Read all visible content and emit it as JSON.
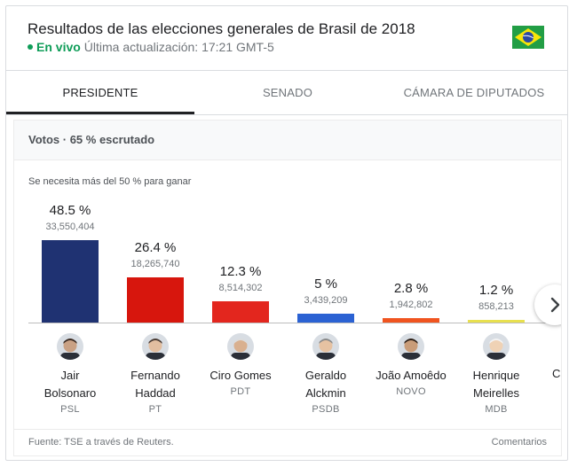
{
  "header": {
    "title": "Resultados de las elecciones generales de Brasil de 2018",
    "live_label": "En vivo",
    "update_text": "Última actualización: 17:21 GMT-5",
    "flag_icon": "brazil-flag-icon",
    "colors": {
      "live": "#0f9d58"
    }
  },
  "tabs": [
    {
      "label": "PRESIDENTE",
      "active": true
    },
    {
      "label": "SENADO",
      "active": false
    },
    {
      "label": "CÁMARA DE DIPUTADOS",
      "active": false
    }
  ],
  "panel": {
    "title": "Votos · 65 % escrutado",
    "threshold_note": "Se necesita más del 50 % para ganar"
  },
  "candidates": [
    {
      "name_line1": "Jair",
      "name_line2": "Bolsonaro",
      "party": "PSL",
      "percent_label": "48.5 %",
      "votes_label": "33,550,404",
      "percent": 48.5,
      "color": "#1f3272"
    },
    {
      "name_line1": "Fernando",
      "name_line2": "Haddad",
      "party": "PT",
      "percent_label": "26.4 %",
      "votes_label": "18,265,740",
      "percent": 26.4,
      "color": "#d7160d"
    },
    {
      "name_line1": "Ciro Gomes",
      "name_line2": "",
      "party": "PDT",
      "percent_label": "12.3 %",
      "votes_label": "8,514,302",
      "percent": 12.3,
      "color": "#e3261e"
    },
    {
      "name_line1": "Geraldo",
      "name_line2": "Alckmin",
      "party": "PSDB",
      "percent_label": "5 %",
      "votes_label": "3,439,209",
      "percent": 5,
      "color": "#2b62d3"
    },
    {
      "name_line1": "João Amoêdo",
      "name_line2": "",
      "party": "NOVO",
      "percent_label": "2.8 %",
      "votes_label": "1,942,802",
      "percent": 2.8,
      "color": "#f0541f"
    },
    {
      "name_line1": "Henrique",
      "name_line2": "Meirelles",
      "party": "MDB",
      "percent_label": "1.2 %",
      "votes_label": "858,213",
      "percent": 1.2,
      "color": "#e8e04e"
    }
  ],
  "partial_candidate": {
    "name_fragment": "Ca",
    "color": "#7cc46c"
  },
  "next_icon": "chevron-right-icon",
  "footer": {
    "source": "Fuente: TSE a través de Reuters.",
    "comments": "Comentarios"
  }
}
